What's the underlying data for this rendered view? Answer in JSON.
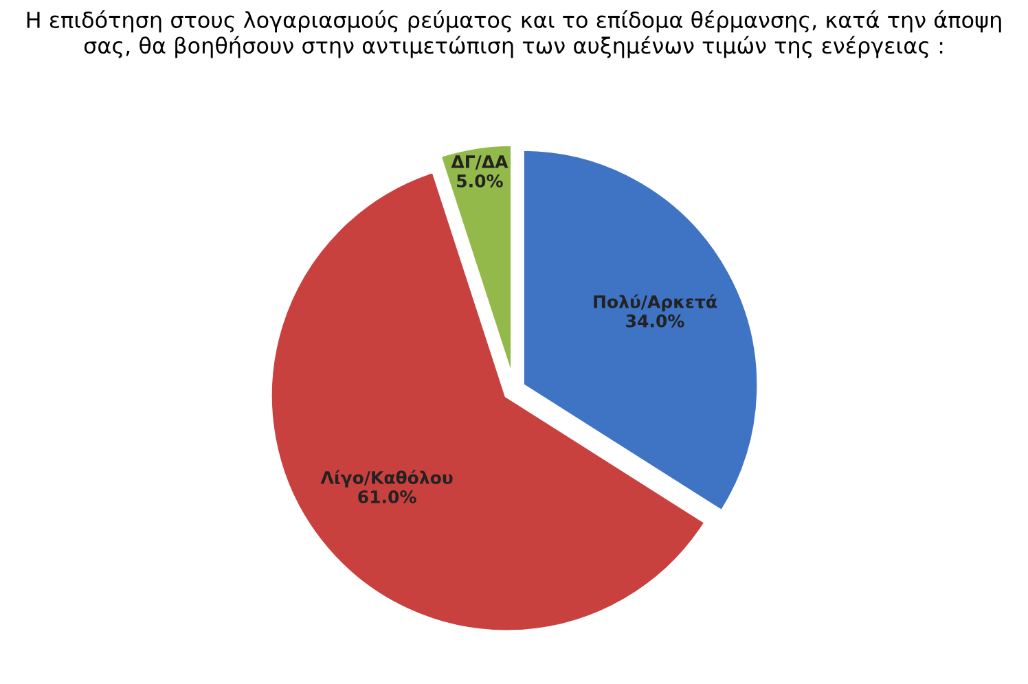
{
  "chart_data": {
    "type": "pie",
    "title": "Η επιδότηση στους λογαριασμούς ρεύματος και το επίδομα θέρμανσης, κατά την άποψη σας, θα βοηθήσουν στην αντιμετώπιση των αυξημένων τιμών της ενέργειας :",
    "categories": [
      "Πολύ/Αρκετά",
      "Λίγο/Καθόλου",
      "ΔΓ/ΔΑ"
    ],
    "values": [
      34.0,
      61.0,
      5.0
    ],
    "value_labels": [
      "34.0%",
      "61.0%",
      "5.0%"
    ],
    "colors": [
      "#3f74c4",
      "#c9413e",
      "#93b94a"
    ]
  }
}
